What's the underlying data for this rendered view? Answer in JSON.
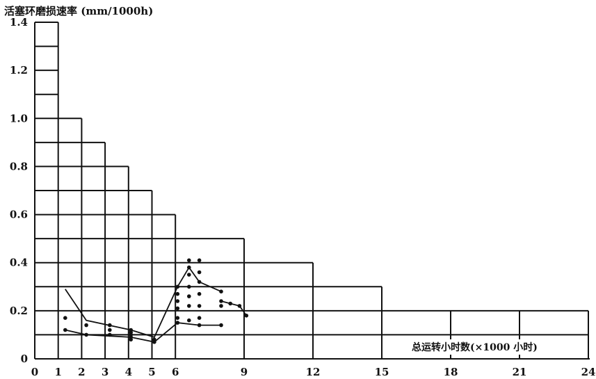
{
  "chart_data": {
    "type": "scatter",
    "title": "",
    "ylabel": "活塞环磨损速率 (mm/1000h)",
    "xlabel": "总运转小时数(×1000 小时)",
    "x_ticks": [
      "0",
      "1",
      "2",
      "3",
      "4",
      "5",
      "6",
      "9",
      "12",
      "15",
      "18",
      "21",
      "24"
    ],
    "x_tick_values": [
      0,
      1,
      2,
      3,
      4,
      5,
      6,
      9,
      12,
      15,
      18,
      21,
      24
    ],
    "x_axis_scale": "piecewise: 1 unit per 1000 h from 0 to 6, then 1 unit per 3000 h from 6 to 24",
    "y_ticks": [
      "0",
      "0.2",
      "0.4",
      "0.6",
      "0.8",
      "1.0",
      "1.2",
      "1.4"
    ],
    "ylim": [
      0,
      1.4
    ],
    "grid": "staircase grid of rectangular cells",
    "staircase_limits": [
      {
        "from": 0,
        "to": 1,
        "y": 1.4
      },
      {
        "from": 1,
        "to": 2,
        "y": 1.0
      },
      {
        "from": 2,
        "to": 3,
        "y": 0.9
      },
      {
        "from": 3,
        "to": 4,
        "y": 0.8
      },
      {
        "from": 4,
        "to": 5,
        "y": 0.7
      },
      {
        "from": 5,
        "to": 6,
        "y": 0.6
      },
      {
        "from": 6,
        "to": 9,
        "y": 0.5
      },
      {
        "from": 9,
        "to": 12,
        "y": 0.4
      },
      {
        "from": 12,
        "to": 15,
        "y": 0.3
      },
      {
        "from": 15,
        "to": 24,
        "y": 0.2
      }
    ],
    "points": [
      [
        1.3,
        0.17
      ],
      [
        1.3,
        0.12
      ],
      [
        2.2,
        0.14
      ],
      [
        2.2,
        0.1
      ],
      [
        3.2,
        0.14
      ],
      [
        3.2,
        0.12
      ],
      [
        3.2,
        0.1
      ],
      [
        4.1,
        0.12
      ],
      [
        4.1,
        0.11
      ],
      [
        4.1,
        0.1
      ],
      [
        4.1,
        0.09
      ],
      [
        4.1,
        0.08
      ],
      [
        5.1,
        0.08
      ],
      [
        5.1,
        0.07
      ],
      [
        6.1,
        0.3
      ],
      [
        6.1,
        0.27
      ],
      [
        6.1,
        0.24
      ],
      [
        6.1,
        0.21
      ],
      [
        6.1,
        0.17
      ],
      [
        6.1,
        0.15
      ],
      [
        6.6,
        0.41
      ],
      [
        6.6,
        0.38
      ],
      [
        6.6,
        0.35
      ],
      [
        6.6,
        0.3
      ],
      [
        6.6,
        0.26
      ],
      [
        6.6,
        0.22
      ],
      [
        6.6,
        0.16
      ],
      [
        7.05,
        0.41
      ],
      [
        7.05,
        0.36
      ],
      [
        7.05,
        0.32
      ],
      [
        7.05,
        0.27
      ],
      [
        7.05,
        0.22
      ],
      [
        7.05,
        0.17
      ],
      [
        7.05,
        0.14
      ],
      [
        8.0,
        0.28
      ],
      [
        8.0,
        0.24
      ],
      [
        8.0,
        0.22
      ],
      [
        8.0,
        0.14
      ],
      [
        8.4,
        0.23
      ],
      [
        8.8,
        0.22
      ],
      [
        9.1,
        0.18
      ]
    ],
    "series": [
      {
        "values": [
          [
            1.3,
            0.29
          ],
          [
            2.2,
            0.16
          ],
          [
            4.1,
            0.12
          ],
          [
            5.1,
            0.09
          ],
          [
            6.1,
            0.3
          ],
          [
            6.6,
            0.38
          ],
          [
            7.05,
            0.32
          ],
          [
            8.0,
            0.28
          ]
        ]
      },
      {
        "values": [
          [
            1.3,
            0.12
          ],
          [
            2.2,
            0.1
          ],
          [
            4.1,
            0.09
          ],
          [
            5.1,
            0.07
          ],
          [
            6.1,
            0.15
          ],
          [
            7.05,
            0.14
          ],
          [
            8.0,
            0.14
          ]
        ]
      },
      {
        "values": [
          [
            8.0,
            0.24
          ],
          [
            8.4,
            0.23
          ],
          [
            8.8,
            0.22
          ],
          [
            9.1,
            0.18
          ]
        ]
      }
    ]
  }
}
